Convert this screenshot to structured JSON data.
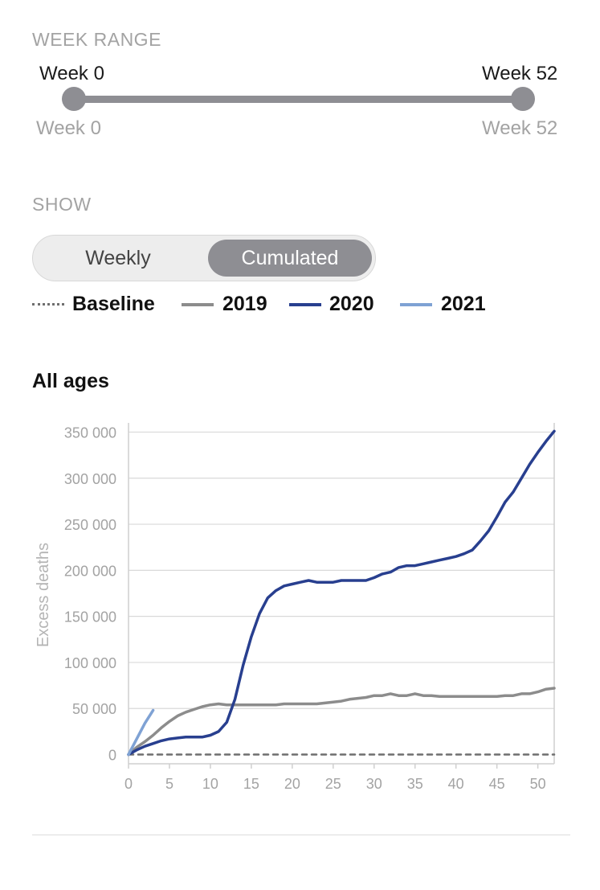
{
  "filters": {
    "week_range": {
      "label": "WEEK RANGE",
      "selected_min_label": "Week 0",
      "selected_max_label": "Week 52",
      "min_label": "Week 0",
      "max_label": "Week 52",
      "min_week": 0,
      "max_week": 52
    },
    "show": {
      "label": "SHOW",
      "options": [
        "Weekly",
        "Cumulated"
      ],
      "selected": "Cumulated"
    }
  },
  "legend": [
    {
      "label": "Baseline",
      "color": "#6f6f6f",
      "style": "dashed"
    },
    {
      "label": "2019",
      "color": "#8c8c8c",
      "style": "solid"
    },
    {
      "label": "2020",
      "color": "#283f8f",
      "style": "solid"
    },
    {
      "label": "2021",
      "color": "#7fa2d4",
      "style": "solid"
    }
  ],
  "chart_data": {
    "type": "line",
    "title": "All ages",
    "ylabel": "Excess deaths",
    "xlabel": "",
    "xlim": [
      0,
      52
    ],
    "ylim": [
      -10000,
      360000
    ],
    "xticks": [
      0,
      5,
      10,
      15,
      20,
      25,
      30,
      35,
      40,
      45,
      50
    ],
    "yticks": [
      0,
      50000,
      100000,
      150000,
      200000,
      250000,
      300000,
      350000
    ],
    "ytick_labels": [
      "0",
      "50 000",
      "100 000",
      "150 000",
      "200 000",
      "250 000",
      "300 000",
      "350 000"
    ],
    "xtick_labels": [
      "0",
      "5",
      "10",
      "15",
      "20",
      "25",
      "30",
      "35",
      "40",
      "45",
      "50"
    ],
    "grid": "horizontal",
    "series": [
      {
        "name": "Baseline",
        "color": "#6f6f6f",
        "dash": "6,6",
        "x": [
          0,
          52
        ],
        "y": [
          0,
          0
        ]
      },
      {
        "name": "2019",
        "color": "#8c8c8c",
        "dash": "",
        "x": [
          0,
          1,
          2,
          3,
          4,
          5,
          6,
          7,
          8,
          9,
          10,
          11,
          12,
          13,
          14,
          15,
          16,
          17,
          18,
          19,
          20,
          21,
          22,
          23,
          24,
          25,
          26,
          27,
          28,
          29,
          30,
          31,
          32,
          33,
          34,
          35,
          36,
          37,
          38,
          39,
          40,
          41,
          42,
          43,
          44,
          45,
          46,
          47,
          48,
          49,
          50,
          51,
          52
        ],
        "y": [
          0,
          8000,
          14000,
          21000,
          29000,
          36000,
          42000,
          46000,
          49000,
          52000,
          54000,
          55000,
          54000,
          54000,
          54000,
          54000,
          54000,
          54000,
          54000,
          55000,
          55000,
          55000,
          55000,
          55000,
          56000,
          57000,
          58000,
          60000,
          61000,
          62000,
          64000,
          64000,
          66000,
          64000,
          64000,
          66000,
          64000,
          64000,
          63000,
          63000,
          63000,
          63000,
          63000,
          63000,
          63000,
          63000,
          64000,
          64000,
          66000,
          66000,
          68000,
          71000,
          72000
        ]
      },
      {
        "name": "2020",
        "color": "#283f8f",
        "dash": "",
        "x": [
          0,
          1,
          2,
          3,
          4,
          5,
          6,
          7,
          8,
          9,
          10,
          11,
          12,
          13,
          14,
          15,
          16,
          17,
          18,
          19,
          20,
          21,
          22,
          23,
          24,
          25,
          26,
          27,
          28,
          29,
          30,
          31,
          32,
          33,
          34,
          35,
          36,
          37,
          38,
          39,
          40,
          41,
          42,
          43,
          44,
          45,
          46,
          47,
          48,
          49,
          50,
          51,
          52
        ],
        "y": [
          0,
          5000,
          9000,
          12000,
          15000,
          17000,
          18000,
          19000,
          19000,
          19000,
          21000,
          25000,
          35000,
          60000,
          97000,
          128000,
          153000,
          170000,
          178000,
          183000,
          185000,
          187000,
          189000,
          187000,
          187000,
          187000,
          189000,
          189000,
          189000,
          189000,
          192000,
          196000,
          198000,
          203000,
          205000,
          205000,
          207000,
          209000,
          211000,
          213000,
          215000,
          218000,
          222000,
          232000,
          243000,
          258000,
          274000,
          285000,
          300000,
          315000,
          328000,
          340000,
          351000
        ]
      },
      {
        "name": "2021",
        "color": "#7fa2d4",
        "dash": "",
        "x": [
          0,
          1,
          2,
          3
        ],
        "y": [
          0,
          17000,
          34000,
          48000
        ]
      }
    ]
  }
}
